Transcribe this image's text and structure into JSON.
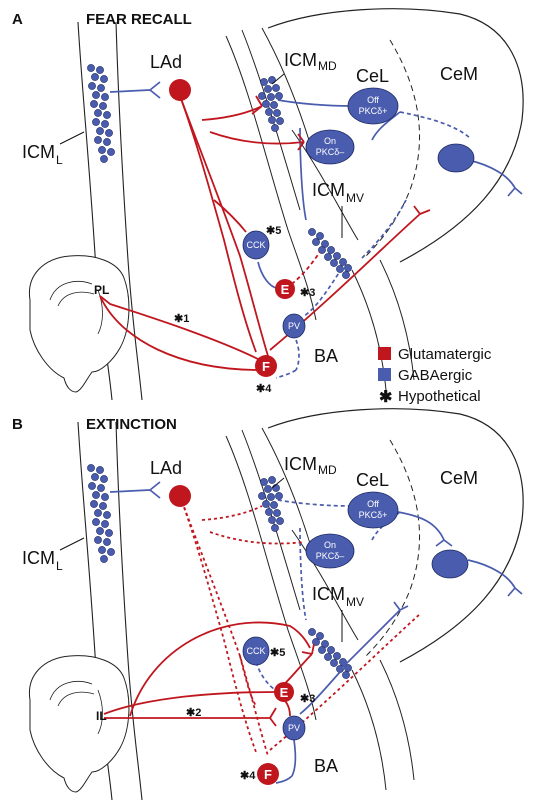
{
  "panels": [
    {
      "letter": "A",
      "title": "FEAR RECALL",
      "regions": {
        "lad": "LAd",
        "icm_md": "ICM",
        "icm_md_sub": "MD",
        "cel": "CeL",
        "cem": "CeM",
        "icm_l": "ICM",
        "icm_l_sub": "L",
        "icm_mv": "ICM",
        "icm_mv_sub": "MV",
        "ba": "BA",
        "cortex": "PL"
      },
      "cells": {
        "off": [
          "Off",
          "PKCδ+"
        ],
        "on": [
          "On",
          "PKCδ–"
        ],
        "cck": "CCK",
        "pv": "PV",
        "e": "E",
        "f": "F"
      },
      "stars": [
        "✱5",
        "✱3",
        "✱1",
        "✱4"
      ]
    },
    {
      "letter": "B",
      "title": "EXTINCTION",
      "regions": {
        "lad": "LAd",
        "icm_md": "ICM",
        "icm_md_sub": "MD",
        "cel": "CeL",
        "cem": "CeM",
        "icm_l": "ICM",
        "icm_l_sub": "L",
        "icm_mv": "ICM",
        "icm_mv_sub": "MV",
        "ba": "BA",
        "cortex": "IL"
      },
      "cells": {
        "off": [
          "Off",
          "PKCδ+"
        ],
        "on": [
          "On",
          "PKCδ–"
        ],
        "cck": "CCK",
        "pv": "PV",
        "e": "E",
        "f": "F"
      },
      "stars": [
        "✱5",
        "✱3",
        "✱2",
        "✱4"
      ]
    }
  ],
  "legend": [
    {
      "label": "Glutamatergic",
      "color": "#c0171f",
      "marker": "square"
    },
    {
      "label": "GABAergic",
      "color": "#4a5cae",
      "marker": "square"
    },
    {
      "label": "Hypothetical",
      "marker": "asterisk"
    }
  ],
  "colors": {
    "glutamatergic": "#c0171f",
    "gabaergic": "#4a5cae"
  }
}
